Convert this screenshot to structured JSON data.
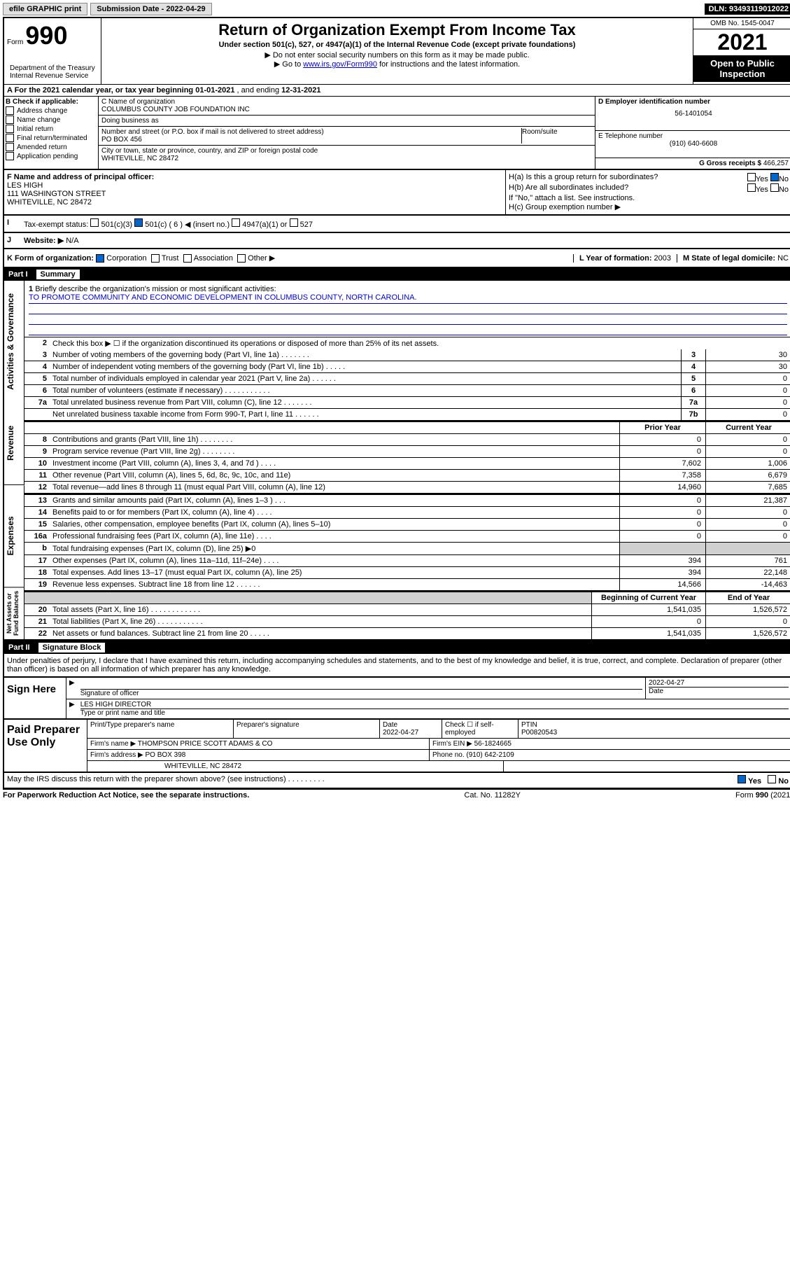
{
  "topbar": {
    "efile": "efile GRAPHIC print",
    "submission_label": "Submission Date - 2022-04-29",
    "dln": "DLN: 93493119012022"
  },
  "header": {
    "form_label": "Form",
    "form_number": "990",
    "dept": "Department of the Treasury\nInternal Revenue Service",
    "title": "Return of Organization Exempt From Income Tax",
    "subtitle": "Under section 501(c), 527, or 4947(a)(1) of the Internal Revenue Code (except private foundations)",
    "note1": "▶ Do not enter social security numbers on this form as it may be made public.",
    "note2_pre": "▶ Go to ",
    "note2_link": "www.irs.gov/Form990",
    "note2_post": " for instructions and the latest information.",
    "omb": "OMB No. 1545-0047",
    "year": "2021",
    "inspection": "Open to Public Inspection"
  },
  "period": {
    "label_a": "A For the 2021 calendar year, or tax year beginning ",
    "begin": "01-01-2021",
    "mid": " , and ending ",
    "end": "12-31-2021"
  },
  "colB": {
    "header": "B Check if applicable:",
    "items": [
      "Address change",
      "Name change",
      "Initial return",
      "Final return/terminated",
      "Amended return",
      "Application pending"
    ]
  },
  "colC": {
    "name_label": "C Name of organization",
    "name": "COLUMBUS COUNTY JOB FOUNDATION INC",
    "dba_label": "Doing business as",
    "dba": "",
    "addr_label": "Number and street (or P.O. box if mail is not delivered to street address)",
    "room_label": "Room/suite",
    "addr": "PO BOX 456",
    "city_label": "City or town, state or province, country, and ZIP or foreign postal code",
    "city": "WHITEVILLE, NC  28472"
  },
  "colD": {
    "ein_label": "D Employer identification number",
    "ein": "56-1401054",
    "phone_label": "E Telephone number",
    "phone": "(910) 640-6608",
    "gross_label": "G Gross receipts $ ",
    "gross": "466,257"
  },
  "rowF": {
    "label": "F Name and address of principal officer:",
    "name": "LES HIGH",
    "addr1": "111 WASHINGTON STREET",
    "addr2": "WHITEVILLE, NC  28472",
    "ha": "H(a)  Is this a group return for subordinates?",
    "hb": "H(b)  Are all subordinates included?",
    "hb_note": "If \"No,\" attach a list. See instructions.",
    "hc": "H(c)  Group exemption number ▶",
    "yes": "Yes",
    "no": "No"
  },
  "rowI": {
    "label": "Tax-exempt status:",
    "opt1": "501(c)(3)",
    "opt2": "501(c) ( 6 ) ◀ (insert no.)",
    "opt3": "4947(a)(1) or",
    "opt4": "527"
  },
  "rowJ": {
    "label": "Website: ▶",
    "value": "N/A"
  },
  "rowK": {
    "label": "K Form of organization:",
    "opts": [
      "Corporation",
      "Trust",
      "Association",
      "Other ▶"
    ],
    "year_label": "L Year of formation: ",
    "year": "2003",
    "state_label": "M State of legal domicile: ",
    "state": "NC"
  },
  "part1": {
    "header": "Part I",
    "title": "Summary",
    "vtabs": [
      "Activities & Governance",
      "Revenue",
      "Expenses",
      "Net Assets or Fund Balances"
    ],
    "line1_label": "Briefly describe the organization's mission or most significant activities:",
    "line1_value": "TO PROMOTE COMMUNITY AND ECONOMIC DEVELOPMENT IN COLUMBUS COUNTY, NORTH CAROLINA.",
    "line2": "Check this box ▶ ☐ if the organization discontinued its operations or disposed of more than 25% of its net assets.",
    "govLines": [
      {
        "n": "3",
        "d": "Number of voting members of the governing body (Part VI, line 1a)  .   .   .   .   .   .   .",
        "b": "3",
        "v": "30"
      },
      {
        "n": "4",
        "d": "Number of independent voting members of the governing body (Part VI, line 1b)  .   .   .   .   .",
        "b": "4",
        "v": "30"
      },
      {
        "n": "5",
        "d": "Total number of individuals employed in calendar year 2021 (Part V, line 2a)  .   .   .   .   .   .",
        "b": "5",
        "v": "0"
      },
      {
        "n": "6",
        "d": "Total number of volunteers (estimate if necessary)  .   .   .   .   .   .   .   .   .   .   .",
        "b": "6",
        "v": "0"
      },
      {
        "n": "7a",
        "d": "Total unrelated business revenue from Part VIII, column (C), line 12  .   .   .   .   .   .   .",
        "b": "7a",
        "v": "0"
      },
      {
        "n": "",
        "d": "Net unrelated business taxable income from Form 990-T, Part I, line 11  .   .   .   .   .   .",
        "b": "7b",
        "v": "0"
      }
    ],
    "col_prior": "Prior Year",
    "col_current": "Current Year",
    "revLines": [
      {
        "n": "8",
        "d": "Contributions and grants (Part VIII, line 1h)  .   .   .   .   .   .   .   .",
        "p": "0",
        "c": "0"
      },
      {
        "n": "9",
        "d": "Program service revenue (Part VIII, line 2g)  .   .   .   .   .   .   .   .",
        "p": "0",
        "c": "0"
      },
      {
        "n": "10",
        "d": "Investment income (Part VIII, column (A), lines 3, 4, and 7d )   .   .   .   .",
        "p": "7,602",
        "c": "1,006"
      },
      {
        "n": "11",
        "d": "Other revenue (Part VIII, column (A), lines 5, 6d, 8c, 9c, 10c, and 11e)",
        "p": "7,358",
        "c": "6,679"
      },
      {
        "n": "12",
        "d": "Total revenue—add lines 8 through 11 (must equal Part VIII, column (A), line 12)",
        "p": "14,960",
        "c": "7,685"
      }
    ],
    "expLines": [
      {
        "n": "13",
        "d": "Grants and similar amounts paid (Part IX, column (A), lines 1–3 )   .   .   .",
        "p": "0",
        "c": "21,387"
      },
      {
        "n": "14",
        "d": "Benefits paid to or for members (Part IX, column (A), line 4)   .   .   .   .",
        "p": "0",
        "c": "0"
      },
      {
        "n": "15",
        "d": "Salaries, other compensation, employee benefits (Part IX, column (A), lines 5–10)",
        "p": "0",
        "c": "0"
      },
      {
        "n": "16a",
        "d": "Professional fundraising fees (Part IX, column (A), line 11e)   .   .   .   .",
        "p": "0",
        "c": "0"
      },
      {
        "n": "b",
        "d": "Total fundraising expenses (Part IX, column (D), line 25) ▶0",
        "p": "grey",
        "c": "grey"
      },
      {
        "n": "17",
        "d": "Other expenses (Part IX, column (A), lines 11a–11d, 11f–24e)  .   .   .   .",
        "p": "394",
        "c": "761"
      },
      {
        "n": "18",
        "d": "Total expenses. Add lines 13–17 (must equal Part IX, column (A), line 25)",
        "p": "394",
        "c": "22,148"
      },
      {
        "n": "19",
        "d": "Revenue less expenses. Subtract line 18 from line 12  .   .   .   .   .   .",
        "p": "14,566",
        "c": "-14,463"
      }
    ],
    "col_begin": "Beginning of Current Year",
    "col_end": "End of Year",
    "netLines": [
      {
        "n": "20",
        "d": "Total assets (Part X, line 16)  .   .   .   .   .   .   .   .   .   .   .   .",
        "p": "1,541,035",
        "c": "1,526,572"
      },
      {
        "n": "21",
        "d": "Total liabilities (Part X, line 26)  .   .   .   .   .   .   .   .   .   .   .",
        "p": "0",
        "c": "0"
      },
      {
        "n": "22",
        "d": "Net assets or fund balances. Subtract line 21 from line 20  .   .   .   .   .",
        "p": "1,541,035",
        "c": "1,526,572"
      }
    ]
  },
  "part2": {
    "header": "Part II",
    "title": "Signature Block",
    "decl": "Under penalties of perjury, I declare that I have examined this return, including accompanying schedules and statements, and to the best of my knowledge and belief, it is true, correct, and complete. Declaration of preparer (other than officer) is based on all information of which preparer has any knowledge."
  },
  "sign": {
    "label": "Sign Here",
    "sig_label": "Signature of officer",
    "date_label": "Date",
    "date": "2022-04-27",
    "name": "LES HIGH  DIRECTOR",
    "name_label": "Type or print name and title"
  },
  "prep": {
    "label": "Paid Preparer Use Only",
    "col1": "Print/Type preparer's name",
    "col2": "Preparer's signature",
    "col3_label": "Date",
    "col3": "2022-04-27",
    "col4": "Check ☐ if self-employed",
    "col5_label": "PTIN",
    "col5": "P00820543",
    "firm_label": "Firm's name     ▶",
    "firm": "THOMPSON PRICE SCOTT ADAMS & CO",
    "ein_label": "Firm's EIN ▶",
    "ein": "56-1824665",
    "addr_label": "Firm's address ▶",
    "addr1": "PO BOX 398",
    "addr2": "WHITEVILLE, NC  28472",
    "phone_label": "Phone no. ",
    "phone": "(910) 642-2109"
  },
  "footer": {
    "discuss": "May the IRS discuss this return with the preparer shown above? (see instructions)  .   .   .   .   .   .   .   .   .",
    "yes": "Yes",
    "no": "No",
    "pra": "For Paperwork Reduction Act Notice, see the separate instructions.",
    "cat": "Cat. No. 11282Y",
    "form": "Form 990 (2021)"
  }
}
